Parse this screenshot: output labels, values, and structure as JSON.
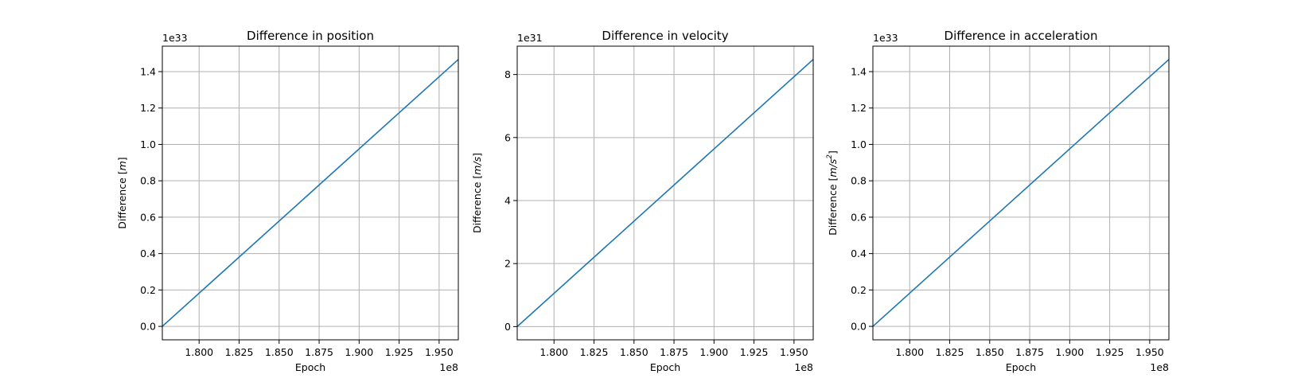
{
  "figure": {
    "background": "#ffffff",
    "line_color": "#1f77b4",
    "grid_color": "#b0b0b0"
  },
  "chart_data": [
    {
      "type": "line",
      "title": "Difference in position",
      "xlabel": "Epoch",
      "ylabel_prefix": "Difference [",
      "ylabel_unit": "m",
      "ylabel_suffix": "]",
      "x_multiplier": "1e8",
      "y_multiplier": "1e33",
      "xlim": [
        1.777,
        1.962
      ],
      "ylim": [
        -0.074,
        1.54
      ],
      "xticks": [
        1.8,
        1.825,
        1.85,
        1.875,
        1.9,
        1.925,
        1.95
      ],
      "xtick_labels": [
        "1.800",
        "1.825",
        "1.850",
        "1.875",
        "1.900",
        "1.925",
        "1.950"
      ],
      "yticks": [
        0.0,
        0.2,
        0.4,
        0.6,
        0.8,
        1.0,
        1.2,
        1.4
      ],
      "ytick_labels": [
        "0.0",
        "0.2",
        "0.4",
        "0.6",
        "0.8",
        "1.0",
        "1.2",
        "1.4"
      ],
      "grid": true,
      "series": [
        {
          "x": [
            1.777,
            1.962
          ],
          "y": [
            0.0,
            1.467
          ]
        }
      ]
    },
    {
      "type": "line",
      "title": "Difference in velocity",
      "xlabel": "Epoch",
      "ylabel_prefix": "Difference [",
      "ylabel_unit": "m/s",
      "ylabel_suffix": "]",
      "x_multiplier": "1e8",
      "y_multiplier": "1e31",
      "xlim": [
        1.777,
        1.962
      ],
      "ylim": [
        -0.42,
        8.9
      ],
      "xticks": [
        1.8,
        1.825,
        1.85,
        1.875,
        1.9,
        1.925,
        1.95
      ],
      "xtick_labels": [
        "1.800",
        "1.825",
        "1.850",
        "1.875",
        "1.900",
        "1.925",
        "1.950"
      ],
      "yticks": [
        0,
        2,
        4,
        6,
        8
      ],
      "ytick_labels": [
        "0",
        "2",
        "4",
        "6",
        "8"
      ],
      "grid": true,
      "series": [
        {
          "x": [
            1.777,
            1.962
          ],
          "y": [
            0.0,
            8.48
          ]
        }
      ]
    },
    {
      "type": "line",
      "title": "Difference in acceleration",
      "xlabel": "Epoch",
      "ylabel_prefix": "Difference [",
      "ylabel_unit": "m/s",
      "ylabel_sup": "2",
      "ylabel_suffix": "]",
      "x_multiplier": "1e8",
      "y_multiplier": "1e33",
      "xlim": [
        1.777,
        1.962
      ],
      "ylim": [
        -0.074,
        1.54
      ],
      "xticks": [
        1.8,
        1.825,
        1.85,
        1.875,
        1.9,
        1.925,
        1.95
      ],
      "xtick_labels": [
        "1.800",
        "1.825",
        "1.850",
        "1.875",
        "1.900",
        "1.925",
        "1.950"
      ],
      "yticks": [
        0.0,
        0.2,
        0.4,
        0.6,
        0.8,
        1.0,
        1.2,
        1.4
      ],
      "ytick_labels": [
        "0.0",
        "0.2",
        "0.4",
        "0.6",
        "0.8",
        "1.0",
        "1.2",
        "1.4"
      ],
      "grid": true,
      "series": [
        {
          "x": [
            1.777,
            1.962
          ],
          "y": [
            0.0,
            1.467
          ]
        }
      ]
    }
  ]
}
